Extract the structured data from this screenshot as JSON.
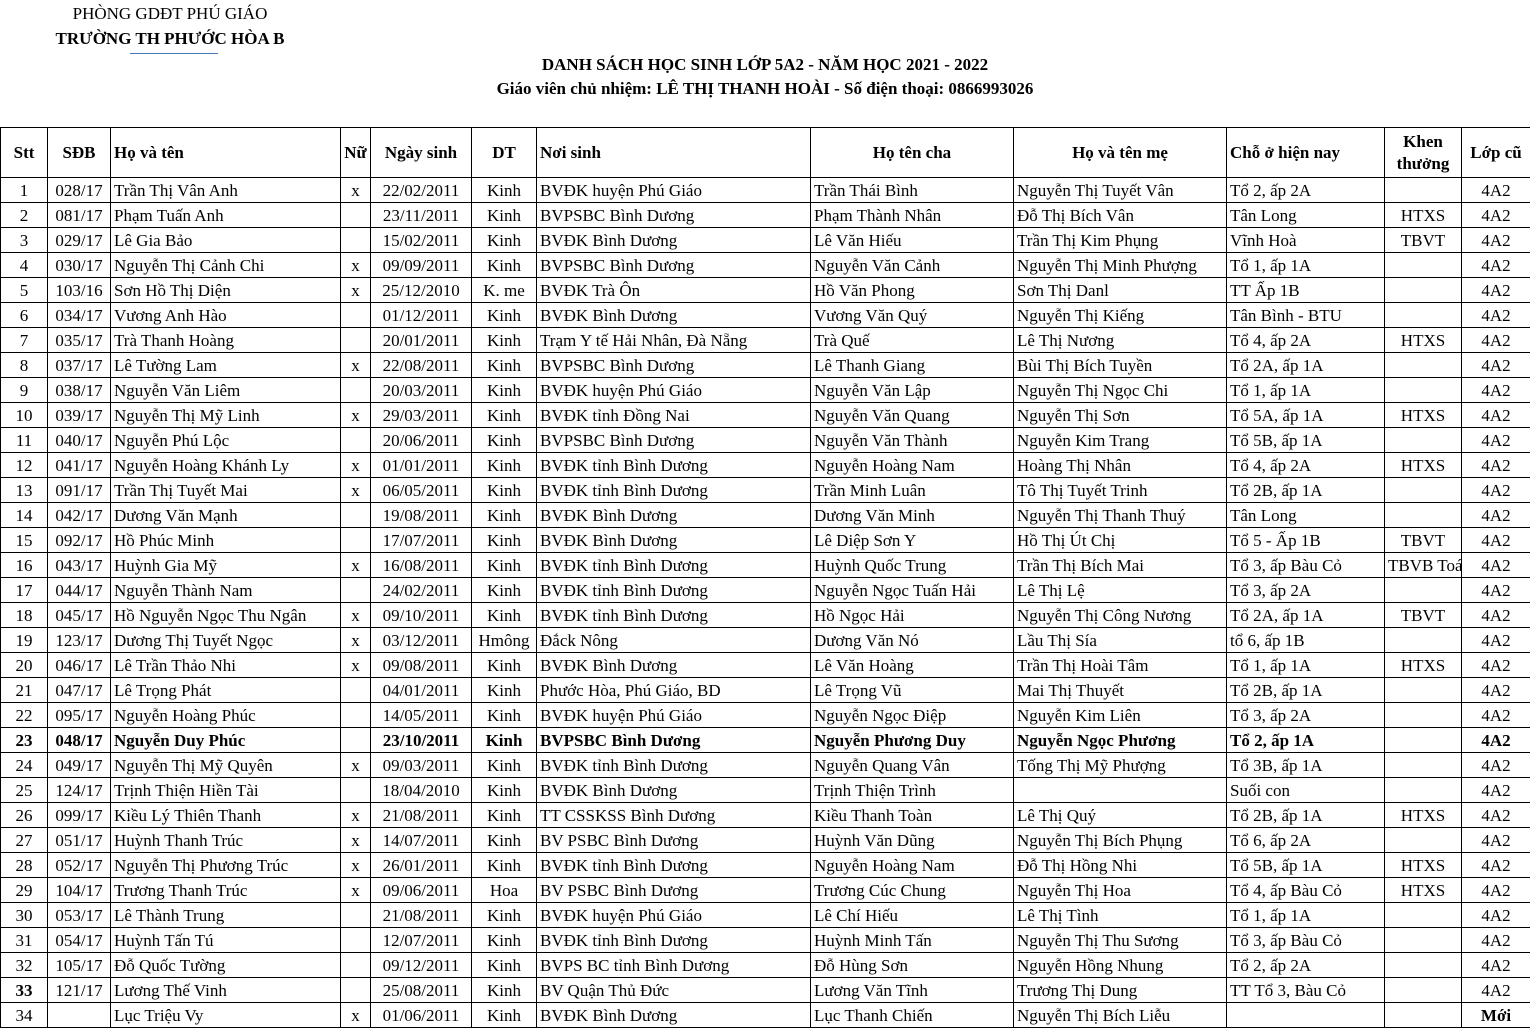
{
  "header": {
    "department": "PHÒNG GDĐT PHÚ GIÁO",
    "school": "TRƯỜNG TH PHƯỚC HÒA B",
    "title": "DANH SÁCH HỌC SINH  LỚP 5A2 - NĂM HỌC 2021 - 2022",
    "subtitle": "Giáo viên chủ nhiệm:  LÊ THỊ THANH HOÀI - Số điện thoại: 0866993026"
  },
  "table": {
    "columns": [
      "Stt",
      "SĐB",
      "Họ và tên",
      "Nữ",
      "Ngày sinh",
      "DT",
      "Nơi sinh",
      "Họ tên cha",
      "Họ và tên mẹ",
      "Chỗ ở hiện nay",
      "Khen thưởng",
      "Lớp cũ"
    ],
    "rows": [
      [
        "1",
        "028/17",
        "Trần Thị Vân Anh",
        "x",
        "22/02/2011",
        "Kinh",
        "BVĐK huyện Phú Giáo",
        "Trần Thái Bình",
        "Nguyễn Thị Tuyết Vân",
        "Tổ 2, ấp 2A",
        null,
        "4A2"
      ],
      [
        "2",
        "081/17",
        "Phạm Tuấn Anh",
        null,
        "23/11/2011",
        "Kinh",
        "BVPSBC Bình Dương",
        "Phạm Thành Nhân",
        "Đỗ Thị Bích Vân",
        "Tân Long",
        "HTXS",
        "4A2"
      ],
      [
        "3",
        "029/17",
        "Lê Gia Bảo",
        null,
        "15/02/2011",
        "Kinh",
        "BVĐK Bình Dương",
        "Lê Văn Hiếu",
        "Trần Thị Kim Phụng",
        "Vĩnh Hoà",
        "TBVT",
        "4A2"
      ],
      [
        "4",
        "030/17",
        "Nguyễn Thị Cảnh Chi",
        "x",
        "09/09/2011",
        "Kinh",
        "BVPSBC Bình Dương",
        "Nguyễn Văn Cảnh",
        "Nguyễn Thị Minh Phượng",
        "Tổ 1, ấp 1A",
        null,
        "4A2"
      ],
      [
        "5",
        "103/16",
        "Sơn Hồ Thị Diện",
        "x",
        "25/12/2010",
        "K. me",
        "BVĐK Trà Ôn",
        "Hồ Văn Phong",
        "Sơn Thị Danl",
        "TT Ấp 1B",
        null,
        "4A2"
      ],
      [
        "6",
        "034/17",
        "Vương Anh Hào",
        null,
        "01/12/2011",
        "Kinh",
        "BVĐK Bình Dương",
        "Vương Văn Quý",
        "Nguyễn Thị Kiếng",
        "Tân Bình - BTU",
        null,
        "4A2"
      ],
      [
        "7",
        "035/17",
        "Trà Thanh Hoàng",
        null,
        "20/01/2011",
        "Kinh",
        "Trạm Y tế Hải Nhân, Đà Nẵng",
        "Trà Quế",
        "Lê Thị Nương",
        "Tổ 4, ấp 2A",
        "HTXS",
        "4A2"
      ],
      [
        "8",
        "037/17",
        "Lê Tường Lam",
        "x",
        "22/08/2011",
        "Kinh",
        "BVPSBC Bình Dương",
        "Lê Thanh Giang",
        "Bùi Thị Bích Tuyền",
        "Tổ 2A, ấp 1A",
        null,
        "4A2"
      ],
      [
        "9",
        "038/17",
        "Nguyễn Văn Liêm",
        null,
        "20/03/2011",
        "Kinh",
        "BVĐK huyện Phú Giáo",
        "Nguyễn Văn Lập",
        "Nguyễn Thị Ngọc Chi",
        "Tổ 1, ấp 1A",
        null,
        "4A2"
      ],
      [
        "10",
        "039/17",
        "Nguyễn Thị Mỹ Linh",
        "x",
        "29/03/2011",
        "Kinh",
        "BVĐK tỉnh Đồng Nai",
        "Nguyễn Văn Quang",
        "Nguyễn Thị Sơn",
        "Tổ 5A, ấp 1A",
        "HTXS",
        "4A2"
      ],
      [
        "11",
        "040/17",
        "Nguyễn Phú Lộc",
        null,
        "20/06/2011",
        "Kinh",
        "BVPSBC Bình Dương",
        "Nguyễn Văn Thành",
        "Nguyễn Kim Trang",
        "Tổ 5B, ấp 1A",
        null,
        "4A2"
      ],
      [
        "12",
        "041/17",
        "Nguyễn Hoàng Khánh Ly",
        "x",
        "01/01/2011",
        "Kinh",
        "BVĐK tỉnh Bình Dương",
        "Nguyễn Hoàng Nam",
        "Hoàng Thị Nhân",
        "Tổ 4, ấp 2A",
        "HTXS",
        "4A2"
      ],
      [
        "13",
        "091/17",
        "Trần Thị Tuyết Mai",
        "x",
        "06/05/2011",
        "Kinh",
        "BVĐK tỉnh Bình Dương",
        "Trần Minh Luân",
        "Tô Thị Tuyết Trinh",
        "Tổ 2B, ấp 1A",
        null,
        "4A2"
      ],
      [
        "14",
        "042/17",
        "Dương Văn Mạnh",
        null,
        "19/08/2011",
        "Kinh",
        "BVĐK Bình Dương",
        "Dương Văn Minh",
        "Nguyễn Thị Thanh Thuý",
        "Tân Long",
        null,
        "4A2"
      ],
      [
        "15",
        "092/17",
        "Hồ Phúc Minh",
        null,
        "17/07/2011",
        "Kinh",
        "BVĐK Bình Dương",
        "Lê  Diệp Sơn Y",
        "Hồ Thị Út Chị",
        "Tổ 5 - Ấp 1B",
        "TBVT",
        "4A2"
      ],
      [
        "16",
        "043/17",
        "Huỳnh Gia Mỹ",
        "x",
        "16/08/2011",
        "Kinh",
        "BVĐK tỉnh Bình Dương",
        "Huỳnh Quốc Trung",
        "Trần Thị Bích Mai",
        "Tổ 3, ấp Bàu Cỏ",
        "TBVB Toá",
        "4A2"
      ],
      [
        "17",
        "044/17",
        "Nguyễn Thành Nam",
        null,
        "24/02/2011",
        "Kinh",
        "BVĐK tỉnh Bình Dương",
        "Nguyễn Ngọc Tuấn Hải",
        "Lê Thị Lệ",
        "Tổ 3, ấp 2A",
        null,
        "4A2"
      ],
      [
        "18",
        "045/17",
        "Hồ Nguyễn Ngọc Thu Ngân",
        "x",
        "09/10/2011",
        "Kinh",
        "BVĐK tỉnh Bình Dương",
        "Hồ Ngọc Hải",
        "Nguyễn Thị Công Nương",
        "Tổ 2A, ấp 1A",
        "TBVT",
        "4A2"
      ],
      [
        "19",
        "123/17",
        "Dương Thị Tuyết Ngọc",
        "x",
        "03/12/2011",
        "Hmông",
        "Đắck Nông",
        "Dương Văn Nó",
        "Lầu Thị Sía",
        " tổ 6, ấp 1B",
        null,
        "4A2"
      ],
      [
        "20",
        "046/17",
        "Lê Trần Thảo Nhi",
        "x",
        "09/08/2011",
        "Kinh",
        "BVĐK Bình Dương",
        "Lê Văn Hoàng",
        "Trần Thị Hoài Tâm",
        "Tổ 1, ấp 1A",
        "HTXS",
        "4A2"
      ],
      [
        "21",
        "047/17",
        "Lê Trọng Phát",
        null,
        "04/01/2011",
        "Kinh",
        "Phước Hòa, Phú Giáo, BD",
        "Lê Trọng Vũ",
        "Mai Thị Thuyết",
        "Tổ 2B, ấp 1A",
        null,
        "4A2"
      ],
      [
        "22",
        "095/17",
        "Nguyễn Hoàng Phúc",
        null,
        "14/05/2011",
        "Kinh",
        "BVĐK huyện Phú Giáo",
        "Nguyễn Ngọc Điệp",
        "Nguyễn Kim Liên",
        "Tổ 3, ấp 2A",
        null,
        "4A2"
      ],
      [
        "23",
        "048/17",
        "Nguyễn Duy Phúc",
        null,
        "23/10/2011",
        "Kinh",
        "BVPSBC Bình Dương",
        "Nguyễn Phương Duy",
        "Nguyễn Ngọc Phương",
        "Tổ 2, ấp 1A",
        null,
        "4A2"
      ],
      [
        "24",
        "049/17",
        "Nguyễn Thị Mỹ Quyên",
        "x",
        "09/03/2011",
        "Kinh",
        "BVĐK tỉnh Bình Dương",
        "Nguyễn Quang Vân",
        "Tống Thị Mỹ Phượng",
        "Tổ 3B, ấp 1A",
        null,
        "4A2"
      ],
      [
        "25",
        "124/17",
        "Trịnh Thiện Hiền Tài",
        null,
        "18/04/2010",
        "Kinh",
        "BVĐK Bình Dương",
        "Trịnh Thiện Trình",
        null,
        "Suối con",
        null,
        "4A2"
      ],
      [
        "26",
        "099/17",
        "Kiều Lý Thiên Thanh",
        "x",
        "21/08/2011",
        "Kinh",
        "TT CSSKSS Bình Dương",
        "Kiều Thanh Toàn",
        "Lê Thị Quý",
        "Tổ 2B, ấp 1A",
        "HTXS",
        "4A2"
      ],
      [
        "27",
        "051/17",
        "Huỳnh Thanh Trúc",
        "x",
        "14/07/2011",
        "Kinh",
        "BV PSBC Bình Dương",
        "Huỳnh Văn Dũng",
        "Nguyễn Thị Bích Phụng",
        "Tổ 6, ấp 2A",
        null,
        "4A2"
      ],
      [
        "28",
        "052/17",
        "Nguyễn Thị Phương Trúc",
        "x",
        "26/01/2011",
        "Kinh",
        "BVĐK tỉnh Bình Dương",
        "Nguyễn Hoàng Nam",
        "Đỗ Thị Hồng Nhi",
        "Tổ 5B, ấp 1A",
        "HTXS",
        "4A2"
      ],
      [
        "29",
        "104/17",
        "Trương Thanh Trúc",
        "x",
        "09/06/2011",
        "Hoa",
        "BV PSBC Bình Dương",
        "Trương Cúc Chung",
        "Nguyễn Thị Hoa",
        "Tổ 4, ấp Bàu Cỏ",
        "HTXS",
        "4A2"
      ],
      [
        "30",
        "053/17",
        "Lê Thành Trung",
        null,
        "21/08/2011",
        "Kinh",
        "BVĐK huyện Phú Giáo",
        "Lê Chí Hiếu",
        "Lê Thị Tình",
        "Tổ 1, ấp 1A",
        null,
        "4A2"
      ],
      [
        "31",
        "054/17",
        "Huỳnh Tấn Tú",
        null,
        "12/07/2011",
        "Kinh",
        "BVĐK tỉnh Bình Dương",
        "Huỳnh Minh Tấn",
        "Nguyễn Thị Thu Sương",
        "Tổ 3, ấp Bàu Cỏ",
        null,
        "4A2"
      ],
      [
        "32",
        "105/17",
        "Đỗ Quốc Tường",
        null,
        "09/12/2011",
        "Kinh",
        "BVPS BC tỉnh Bình Dương",
        "Đỗ Hùng Sơn",
        "Nguyễn Hồng Nhung",
        "Tổ 2, ấp 2A",
        null,
        "4A2"
      ],
      [
        "33",
        "121/17",
        "Lương Thế Vinh",
        null,
        "25/08/2011",
        "Kinh",
        "BV Quận Thủ Đức",
        "Lương Văn Tĩnh",
        "Trương Thị Dung",
        "TT Tổ 3, Bàu Cỏ",
        null,
        "4A2"
      ],
      [
        "34",
        null,
        "Lục Triệu Vy",
        "x",
        "01/06/2011",
        "Kinh",
        "BVĐK Bình Dương",
        "Lục Thanh Chiến",
        "Nguyễn Thị Bích Liễu",
        null,
        null,
        "Mới"
      ]
    ]
  }
}
